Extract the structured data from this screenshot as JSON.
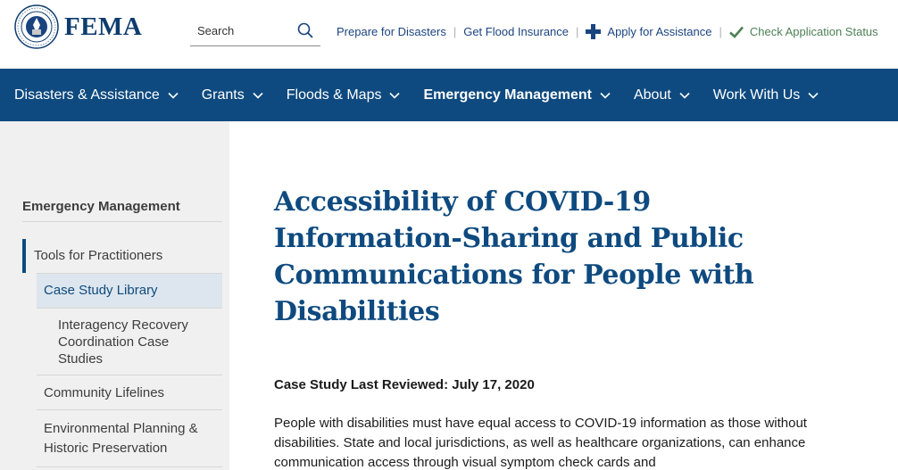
{
  "header": {
    "logo_text": "FEMA",
    "seal_text": "U.S. DEPARTMENT OF HOMELAND SECURITY",
    "search_placeholder": "Search",
    "links": {
      "prepare": "Prepare for Disasters",
      "flood": "Get Flood Insurance",
      "apply": "Apply for Assistance",
      "check": "Check Application Status"
    },
    "colors": {
      "brand": "#0e4a7f",
      "apply_icon": "#1a4480",
      "check_icon": "#4d8055"
    }
  },
  "nav": {
    "items": [
      {
        "label": "Disasters & Assistance"
      },
      {
        "label": "Grants"
      },
      {
        "label": "Floods & Maps"
      },
      {
        "label": "Emergency Management"
      },
      {
        "label": "About"
      },
      {
        "label": "Work With Us"
      }
    ]
  },
  "sidebar": {
    "title": "Emergency Management",
    "sub": "Tools for Practitioners",
    "items": [
      {
        "label": "Case Study Library"
      },
      {
        "label": "Interagency Recovery Coordination Case Studies"
      },
      {
        "label": "Community Lifelines"
      },
      {
        "label": "Environmental Planning & Historic Preservation"
      }
    ]
  },
  "main": {
    "title": "Accessibility of COVID-19 Information-Sharing and Public Communications for People with Disabilities",
    "reviewed": "Case Study Last Reviewed: July 17, 2020",
    "body": "People with disabilities must have equal access to COVID-19 information as those without disabilities. State and local jurisdictions, as well as healthcare organizations, can enhance communication access through visual symptom check cards and"
  }
}
